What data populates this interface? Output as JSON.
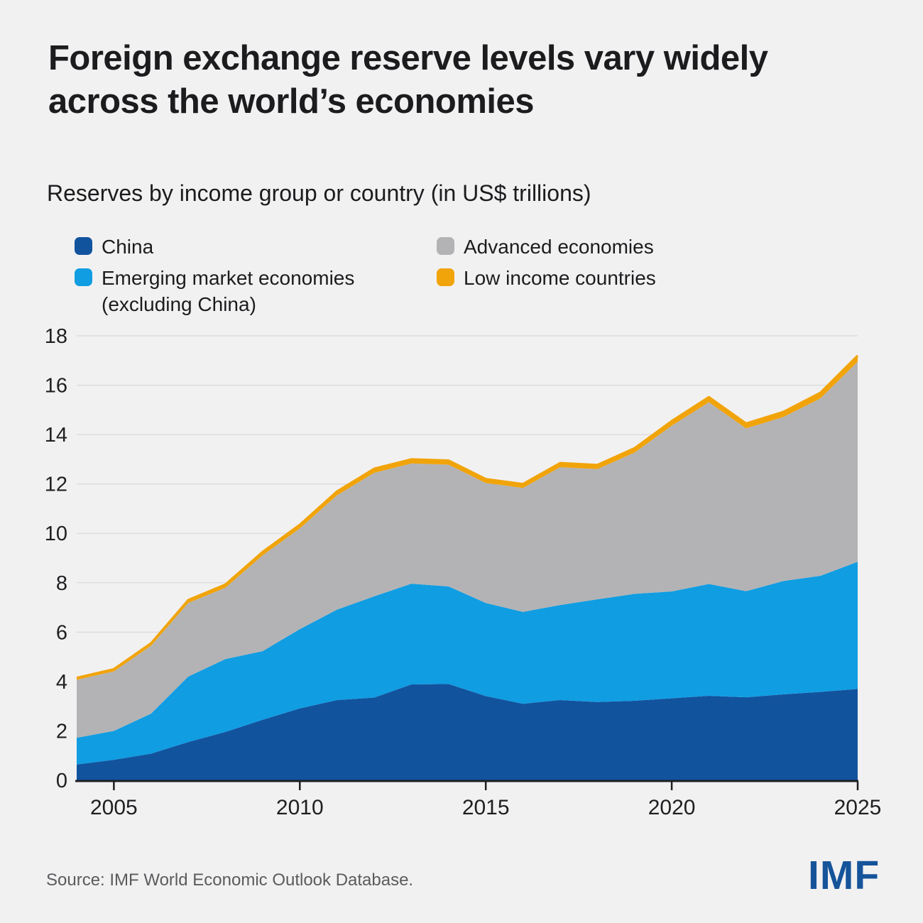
{
  "page": {
    "background": "#f2f1f2"
  },
  "header": {
    "title_lines": [
      "Foreign exchange reserve levels vary widely",
      "across the world’s economies"
    ],
    "subtitle": "Reserves by income group or country (in US$ trillions)"
  },
  "legend": {
    "items": [
      {
        "label": "China",
        "color": "#12539e"
      },
      {
        "label": "Emerging market economies",
        "label_line2": "(excluding China)",
        "color": "#109de2"
      },
      {
        "label": "Advanced economies",
        "color": "#b3b3b5"
      },
      {
        "label": "Low income countries",
        "color": "#f1a40a"
      }
    ]
  },
  "chart_data": {
    "type": "area",
    "stacked": true,
    "title": "Reserves by income group or country (in US$ trillions)",
    "xlabel": "",
    "ylabel": "US$ trillions",
    "x": [
      2004,
      2005,
      2006,
      2007,
      2008,
      2009,
      2010,
      2011,
      2012,
      2013,
      2014,
      2015,
      2016,
      2017,
      2018,
      2019,
      2020,
      2021,
      2022,
      2023,
      2024,
      2025
    ],
    "series": [
      {
        "name": "China",
        "color": "#12539e",
        "values": [
          0.64,
          0.83,
          1.08,
          1.55,
          1.96,
          2.45,
          2.91,
          3.25,
          3.35,
          3.88,
          3.9,
          3.41,
          3.1,
          3.25,
          3.17,
          3.22,
          3.32,
          3.42,
          3.36,
          3.48,
          3.58,
          3.7
        ]
      },
      {
        "name": "Emerging market economies (excluding China)",
        "color": "#109de2",
        "values": [
          1.08,
          1.17,
          1.62,
          2.65,
          2.95,
          2.78,
          3.21,
          3.66,
          4.1,
          4.08,
          3.95,
          3.77,
          3.72,
          3.85,
          4.16,
          4.33,
          4.33,
          4.53,
          4.3,
          4.59,
          4.7,
          5.15
        ]
      },
      {
        "name": "Advanced economies",
        "color": "#b3b3b5",
        "values": [
          2.35,
          2.41,
          2.75,
          2.98,
          2.89,
          3.88,
          4.08,
          4.63,
          5.0,
          4.87,
          4.93,
          4.86,
          5.02,
          5.58,
          5.27,
          5.72,
          6.71,
          7.36,
          6.59,
          6.64,
          7.19,
          8.1
        ]
      },
      {
        "name": "Low income countries",
        "color": "#f1a40a",
        "values": [
          0.08,
          0.09,
          0.1,
          0.12,
          0.13,
          0.14,
          0.15,
          0.16,
          0.17,
          0.17,
          0.17,
          0.16,
          0.16,
          0.17,
          0.17,
          0.18,
          0.19,
          0.21,
          0.2,
          0.21,
          0.23,
          0.25
        ]
      }
    ],
    "totals": [
      4.15,
      4.5,
      5.55,
      7.3,
      7.93,
      9.25,
      10.35,
      11.7,
      12.62,
      13.0,
      12.95,
      12.2,
      12.0,
      12.85,
      12.77,
      13.45,
      14.55,
      15.52,
      14.45,
      14.92,
      15.7,
      17.2
    ],
    "ylim": [
      0,
      18
    ],
    "y_ticks": [
      0,
      2,
      4,
      6,
      8,
      10,
      12,
      14,
      16,
      18
    ],
    "x_ticks": [
      2005,
      2010,
      2015,
      2020,
      2025
    ],
    "grid": true,
    "legend_position": "top",
    "grid_color": "#dbdadb",
    "axis_color": "#1f1f21",
    "tick_label_color": "#1f1f21"
  },
  "footer": {
    "source": "Source: IMF World Economic Outlook Database.",
    "logo": "IMF",
    "logo_color": "#15549a"
  }
}
